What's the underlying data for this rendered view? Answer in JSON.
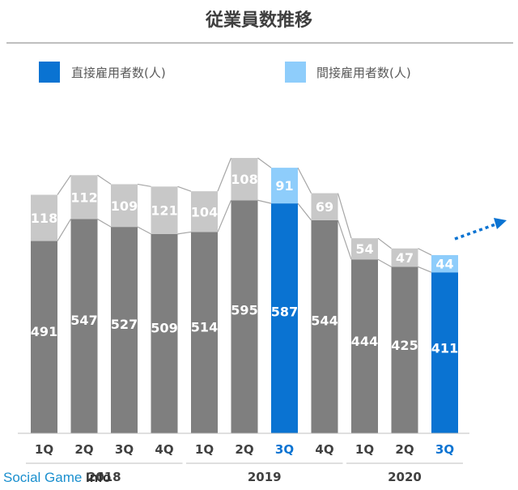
{
  "chart_data": {
    "type": "bar",
    "stacked": true,
    "title": "従業員数推移",
    "categories": [
      "1Q",
      "2Q",
      "3Q",
      "4Q",
      "1Q",
      "2Q",
      "3Q",
      "4Q",
      "1Q",
      "2Q",
      "3Q"
    ],
    "years": [
      "2018",
      "2019",
      "2020"
    ],
    "series": [
      {
        "name": "直接雇用者数(人)",
        "values": [
          491,
          547,
          527,
          509,
          514,
          595,
          587,
          544,
          444,
          425,
          411
        ]
      },
      {
        "name": "間接雇用者数(人)",
        "values": [
          118,
          112,
          109,
          121,
          104,
          108,
          91,
          69,
          54,
          47,
          44
        ]
      }
    ],
    "highlighted_categories": [
      6,
      10
    ],
    "legend_position": "top",
    "grid": false,
    "trend_arrow": "up-right dotted"
  },
  "colors": {
    "direct": "#7f7f7f",
    "indirect": "#c8c8c8",
    "direct_highlight": "#0a73d2",
    "indirect_highlight": "#8ecdfb",
    "connector": "#a6a6a6",
    "title": "#3f3f3f",
    "arrow": "#0a73d2"
  },
  "watermark": {
    "part1": "Social Game ",
    "part2": "Info",
    "color1": "#1a8fce",
    "color2": "#333333"
  }
}
